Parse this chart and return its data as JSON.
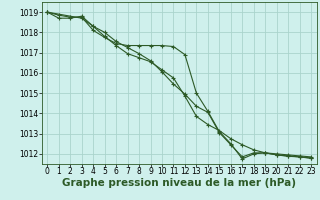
{
  "background_color": "#cff0ec",
  "grid_color": "#aad4cc",
  "line_color": "#2d5a27",
  "xlabel": "Graphe pression niveau de la mer (hPa)",
  "xlabel_fontsize": 7.5,
  "ylabel_ticks": [
    1012,
    1013,
    1014,
    1015,
    1016,
    1017,
    1018,
    1019
  ],
  "xlim": [
    -0.5,
    23.5
  ],
  "ylim": [
    1011.5,
    1019.5
  ],
  "series": [
    {
      "x": [
        0,
        1,
        2,
        3,
        4,
        5,
        6,
        7,
        8,
        9,
        10,
        11,
        12,
        13,
        14,
        15,
        16,
        17,
        18,
        19,
        20,
        21,
        22,
        23
      ],
      "y": [
        1019.0,
        1018.85,
        1018.75,
        1018.75,
        1018.1,
        1017.75,
        1017.45,
        1017.35,
        1017.35,
        1017.35,
        1017.35,
        1017.3,
        1016.9,
        1015.0,
        1014.1,
        1013.1,
        1012.5,
        1011.75,
        1012.0,
        1012.05,
        1012.0,
        1011.95,
        1011.9,
        1011.85
      ]
    },
    {
      "x": [
        0,
        1,
        2,
        3,
        4,
        5,
        6,
        7,
        8,
        9,
        10,
        11,
        12,
        13,
        14,
        15,
        16,
        17,
        18,
        19,
        20,
        21,
        22,
        23
      ],
      "y": [
        1019.0,
        1018.7,
        1018.7,
        1018.8,
        1018.3,
        1018.0,
        1017.55,
        1017.25,
        1016.95,
        1016.6,
        1016.05,
        1015.45,
        1014.95,
        1014.35,
        1014.05,
        1013.05,
        1012.45,
        1011.85,
        1012.05,
        1012.05,
        1011.95,
        1011.9,
        1011.85,
        1011.8
      ]
    },
    {
      "x": [
        0,
        3,
        4,
        5,
        6,
        7,
        8,
        9,
        10,
        11,
        12,
        13,
        14,
        15,
        16,
        17,
        18,
        19,
        20,
        21,
        22,
        23
      ],
      "y": [
        1019.0,
        1018.7,
        1018.3,
        1017.8,
        1017.35,
        1016.95,
        1016.75,
        1016.55,
        1016.15,
        1015.75,
        1014.85,
        1013.85,
        1013.45,
        1013.15,
        1012.75,
        1012.45,
        1012.2,
        1012.05,
        1011.95,
        1011.88,
        1011.85,
        1011.78
      ]
    }
  ],
  "xtick_labels": [
    "0",
    "1",
    "2",
    "3",
    "4",
    "5",
    "6",
    "7",
    "8",
    "9",
    "10",
    "11",
    "12",
    "13",
    "14",
    "15",
    "16",
    "17",
    "18",
    "19",
    "20",
    "21",
    "22",
    "23"
  ],
  "tick_fontsize": 5.5
}
